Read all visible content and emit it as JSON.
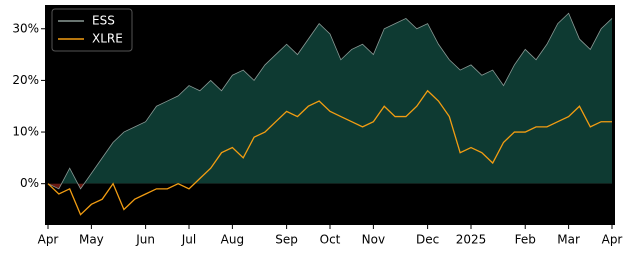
{
  "chart_data": {
    "type": "area-line",
    "categories": [
      "Apr",
      null,
      null,
      null,
      "May",
      null,
      null,
      null,
      null,
      "Jun",
      null,
      null,
      null,
      "Jul",
      null,
      null,
      null,
      "Aug",
      null,
      null,
      null,
      null,
      "Sep",
      null,
      null,
      null,
      "Oct",
      null,
      null,
      null,
      "Nov",
      null,
      null,
      null,
      null,
      "Dec",
      null,
      null,
      null,
      "2025",
      null,
      null,
      null,
      null,
      "Feb",
      null,
      null,
      null,
      "Mar",
      null,
      null,
      null,
      "Apr"
    ],
    "series": [
      {
        "name": "ESS",
        "color": "#8a9a96",
        "fill": "#0e3a32",
        "negative_fill": "#6b1a12",
        "values": [
          0,
          -1,
          3,
          -1,
          2,
          5,
          8,
          10,
          11,
          12,
          15,
          16,
          17,
          19,
          18,
          20,
          18,
          21,
          22,
          20,
          23,
          25,
          27,
          25,
          28,
          31,
          29,
          24,
          26,
          27,
          25,
          30,
          31,
          32,
          30,
          31,
          27,
          24,
          22,
          23,
          21,
          22,
          19,
          23,
          26,
          24,
          27,
          31,
          33,
          28,
          26,
          30,
          32
        ]
      },
      {
        "name": "XLRE",
        "color": "#f29d12",
        "values": [
          0,
          -2,
          -1,
          -6,
          -4,
          -3,
          0,
          -5,
          -3,
          -2,
          -1,
          -1,
          0,
          -1,
          1,
          3,
          6,
          7,
          5,
          9,
          10,
          12,
          14,
          13,
          15,
          16,
          14,
          13,
          12,
          11,
          12,
          15,
          13,
          13,
          15,
          18,
          16,
          13,
          6,
          7,
          6,
          4,
          8,
          10,
          10,
          11,
          11,
          12,
          13,
          15,
          11,
          12,
          12
        ]
      }
    ],
    "ylim": [
      -8,
      34.6
    ],
    "yticks": [
      {
        "value": 0,
        "label": "0%"
      },
      {
        "value": 10,
        "label": "10%"
      },
      {
        "value": 20,
        "label": "20%"
      },
      {
        "value": 30,
        "label": "30%"
      }
    ],
    "legend": "upper left"
  }
}
